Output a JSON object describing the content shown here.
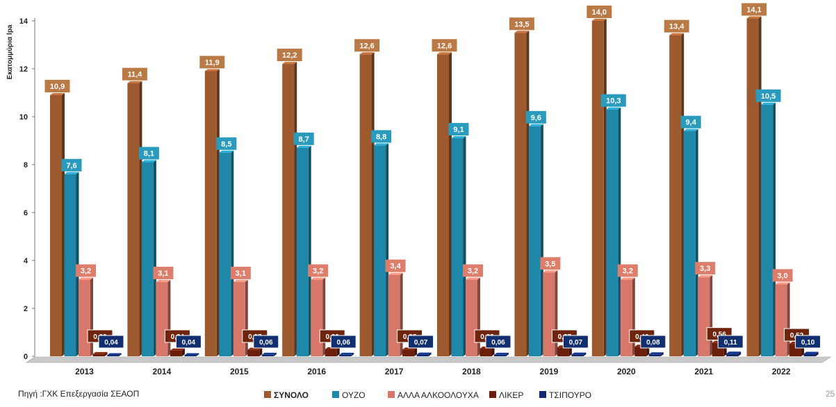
{
  "source_note": "Πηγή :ΓΧΚ Επεξεργασία ΣΕΑΟΠ",
  "page_number": "25",
  "chart_data": {
    "type": "bar",
    "ylabel": "Εκατομμύρια lpa",
    "ylim": [
      0,
      14
    ],
    "yticks": [
      "0",
      "2",
      "4",
      "6",
      "8",
      "10",
      "12",
      "14"
    ],
    "grid": false,
    "legend_position": "bottom",
    "categories": [
      "2013",
      "2014",
      "2015",
      "2016",
      "2017",
      "2018",
      "2019",
      "2020",
      "2021",
      "2022"
    ],
    "series": [
      {
        "name": "ΣΥΝΟΛΟ",
        "color": "#9c5a2e",
        "label_color": "#b97a46",
        "bold": true,
        "values": [
          10.9,
          11.4,
          11.9,
          12.2,
          12.6,
          12.6,
          13.5,
          14.0,
          13.4,
          14.1
        ],
        "labels": [
          "10,9",
          "11,4",
          "11,9",
          "12,2",
          "12,6",
          "12,6",
          "13,5",
          "14,0",
          "13,4",
          "14,1"
        ]
      },
      {
        "name": "ΟΥΖΟ",
        "color": "#1f87a8",
        "label_color": "#2b9bbd",
        "bold": false,
        "values": [
          7.6,
          8.1,
          8.5,
          8.7,
          8.8,
          9.1,
          9.6,
          10.3,
          9.4,
          10.5
        ],
        "labels": [
          "7,6",
          "8,1",
          "8,5",
          "8,7",
          "8,8",
          "9,1",
          "9,6",
          "10,3",
          "9,4",
          "10,5"
        ]
      },
      {
        "name": "ΑΛΛΑ ΑΛΚΟΟΛΟΥΧΑ",
        "color": "#d8786a",
        "label_color": "#dd7e6d",
        "bold": false,
        "values": [
          3.2,
          3.1,
          3.1,
          3.2,
          3.4,
          3.2,
          3.5,
          3.2,
          3.3,
          3.0
        ],
        "labels": [
          "3,2",
          "3,1",
          "3,1",
          "3,2",
          "3,4",
          "3,2",
          "3,5",
          "3,2",
          "3,3",
          "3,0"
        ]
      },
      {
        "name": "ΛΙΚΕΡ",
        "color": "#6b1f0a",
        "label_color": "#6e240d",
        "bold": false,
        "values": [
          0.09,
          0.24,
          0.27,
          0.29,
          0.28,
          0.32,
          0.37,
          0.4,
          0.56,
          0.52
        ],
        "labels": [
          "0,09",
          "0,24",
          "0,27",
          "0,29",
          "0,28",
          "0,32",
          "0,37",
          "0,40",
          "0,56",
          "0,52"
        ]
      },
      {
        "name": "ΤΣΙΠΟΥΡΟ",
        "color": "#0f2a6e",
        "label_color": "#12306f",
        "bold": false,
        "values": [
          0.04,
          0.04,
          0.06,
          0.06,
          0.07,
          0.06,
          0.07,
          0.08,
          0.11,
          0.1
        ],
        "labels": [
          "0,04",
          "0,04",
          "0,06",
          "0,06",
          "0,07",
          "0,06",
          "0,07",
          "0,08",
          "0,11",
          "0,10"
        ]
      }
    ]
  }
}
